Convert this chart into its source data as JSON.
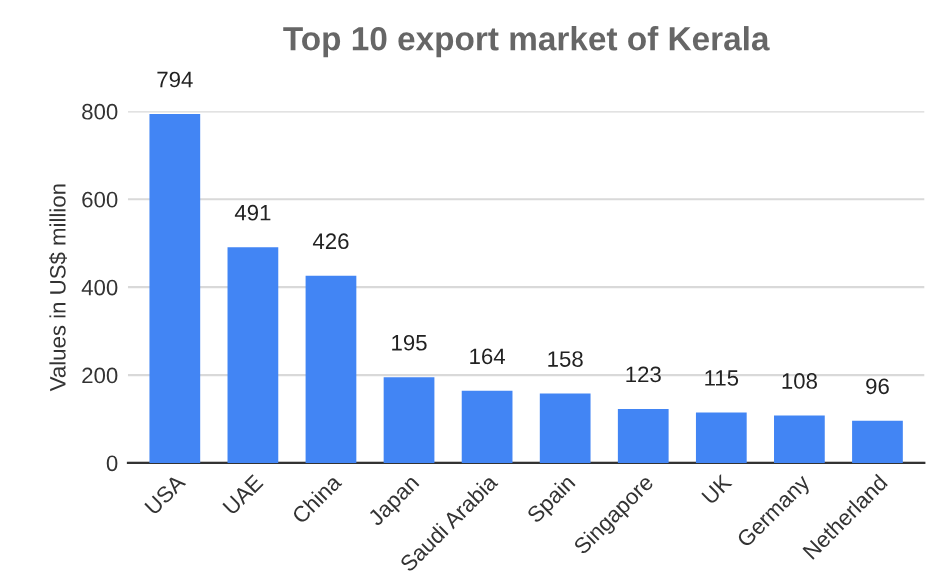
{
  "chart_data": {
    "type": "bar",
    "title": "Top 10 export market of Kerala",
    "ylabel": "Values in US$ million",
    "categories": [
      "USA",
      "UAE",
      "China",
      "Japan",
      "Saudi Arabia",
      "Spain",
      "Singapore",
      "UK",
      "Germany",
      "Netherland"
    ],
    "values": [
      794,
      491,
      426,
      195,
      164,
      158,
      123,
      115,
      108,
      96
    ],
    "color": "#4285f4",
    "ylim": [
      0,
      800
    ],
    "yticks": [
      0,
      200,
      400,
      600,
      800
    ],
    "grid": "y",
    "data_labels": true
  }
}
